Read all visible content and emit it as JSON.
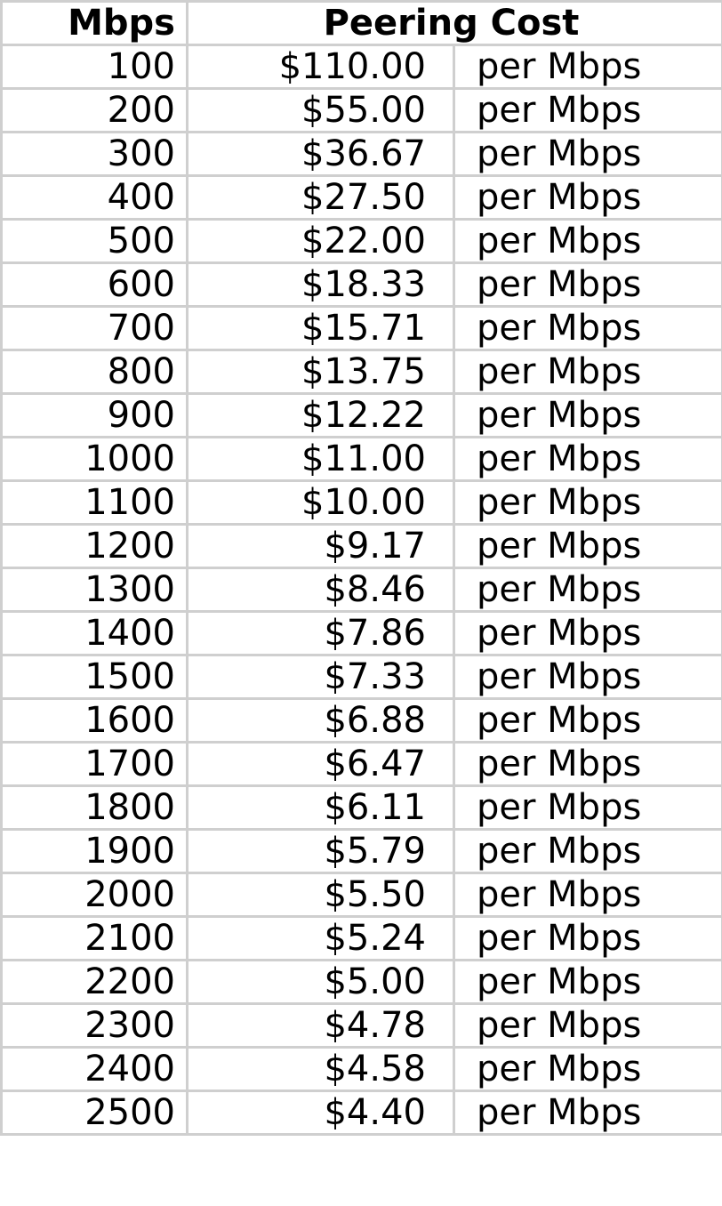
{
  "chart_data": {
    "type": "table",
    "columns": [
      "Mbps",
      "Peering Cost"
    ],
    "unit_label": "per Mbps",
    "rows": [
      {
        "mbps": "100",
        "cost": "$110.00",
        "unit": "per Mbps"
      },
      {
        "mbps": "200",
        "cost": "$55.00",
        "unit": "per Mbps"
      },
      {
        "mbps": "300",
        "cost": "$36.67",
        "unit": "per Mbps"
      },
      {
        "mbps": "400",
        "cost": "$27.50",
        "unit": "per Mbps"
      },
      {
        "mbps": "500",
        "cost": "$22.00",
        "unit": "per Mbps"
      },
      {
        "mbps": "600",
        "cost": "$18.33",
        "unit": "per Mbps"
      },
      {
        "mbps": "700",
        "cost": "$15.71",
        "unit": "per Mbps"
      },
      {
        "mbps": "800",
        "cost": "$13.75",
        "unit": "per Mbps"
      },
      {
        "mbps": "900",
        "cost": "$12.22",
        "unit": "per Mbps"
      },
      {
        "mbps": "1000",
        "cost": "$11.00",
        "unit": "per Mbps"
      },
      {
        "mbps": "1100",
        "cost": "$10.00",
        "unit": "per Mbps"
      },
      {
        "mbps": "1200",
        "cost": "$9.17",
        "unit": "per Mbps"
      },
      {
        "mbps": "1300",
        "cost": "$8.46",
        "unit": "per Mbps"
      },
      {
        "mbps": "1400",
        "cost": "$7.86",
        "unit": "per Mbps"
      },
      {
        "mbps": "1500",
        "cost": "$7.33",
        "unit": "per Mbps"
      },
      {
        "mbps": "1600",
        "cost": "$6.88",
        "unit": "per Mbps"
      },
      {
        "mbps": "1700",
        "cost": "$6.47",
        "unit": "per Mbps"
      },
      {
        "mbps": "1800",
        "cost": "$6.11",
        "unit": "per Mbps"
      },
      {
        "mbps": "1900",
        "cost": "$5.79",
        "unit": "per Mbps"
      },
      {
        "mbps": "2000",
        "cost": "$5.50",
        "unit": "per Mbps"
      },
      {
        "mbps": "2100",
        "cost": "$5.24",
        "unit": "per Mbps"
      },
      {
        "mbps": "2200",
        "cost": "$5.00",
        "unit": "per Mbps"
      },
      {
        "mbps": "2300",
        "cost": "$4.78",
        "unit": "per Mbps"
      },
      {
        "mbps": "2400",
        "cost": "$4.58",
        "unit": "per Mbps"
      },
      {
        "mbps": "2500",
        "cost": "$4.40",
        "unit": "per Mbps"
      }
    ]
  },
  "colors": {
    "grid_border": "#cfcfcf",
    "text": "#000000",
    "background": "#ffffff"
  }
}
